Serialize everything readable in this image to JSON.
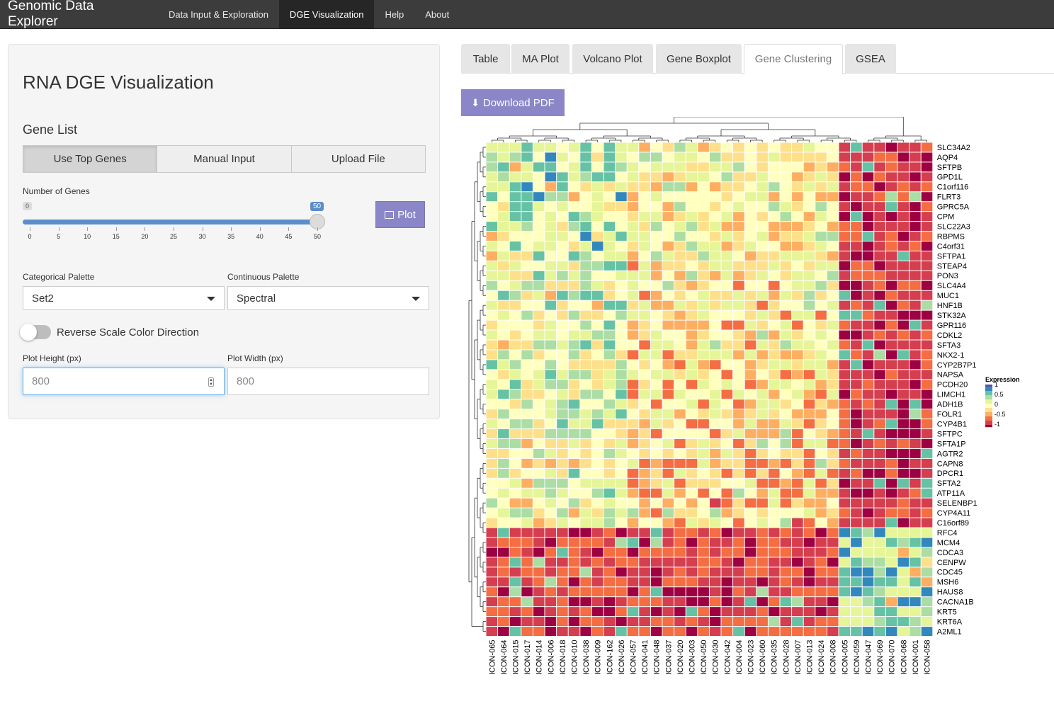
{
  "navbar": {
    "brand": "Genomic Data Explorer",
    "items": [
      "Data Input & Exploration",
      "DGE Visualization",
      "Help",
      "About"
    ],
    "active": "DGE Visualization"
  },
  "sidebar": {
    "title": "RNA DGE Visualization",
    "gene_list_label": "Gene List",
    "gene_list_options": [
      "Use Top Genes",
      "Manual Input",
      "Upload File"
    ],
    "gene_list_selected": "Use Top Genes",
    "num_genes_label": "Number of Genes",
    "slider": {
      "min": 0,
      "max": 50,
      "value": 50,
      "min_label": "0",
      "value_label": "50",
      "ticks": [
        "0",
        "5",
        "10",
        "15",
        "20",
        "25",
        "30",
        "35",
        "40",
        "45",
        "50"
      ]
    },
    "plot_button": "Plot",
    "cat_palette_label": "Categorical Palette",
    "cat_palette_value": "Set2",
    "cont_palette_label": "Continuous Palette",
    "cont_palette_value": "Spectral",
    "reverse_label": "Reverse Scale Color Direction",
    "reverse_on": false,
    "height_label": "Plot Height (px)",
    "height_placeholder": "800",
    "width_label": "Plot Width (px)",
    "width_placeholder": "800"
  },
  "tabs": [
    "Table",
    "MA Plot",
    "Volcano Plot",
    "Gene Boxplot",
    "Gene Clustering",
    "GSEA"
  ],
  "active_tab": "Gene Clustering",
  "download_button": "Download PDF",
  "heatmap": {
    "legend_title": "Expression",
    "legend_ticks": [
      "1",
      "0.5",
      "0",
      "-0.5",
      "-1"
    ],
    "genes": [
      "SLC34A2",
      "AQP4",
      "SFTPB",
      "GPD1L",
      "C1orf116",
      "FLRT3",
      "GPRC5A",
      "CPM",
      "SLC22A3",
      "RBPMS",
      "C4orf31",
      "SFTPA1",
      "STEAP4",
      "PON3",
      "SLC4A4",
      "MUC1",
      "HNF1B",
      "STK32A",
      "GPR116",
      "CDKL2",
      "SFTA3",
      "NKX2-1",
      "CYP2B7P1",
      "NAPSA",
      "PCDH20",
      "LIMCH1",
      "ADH1B",
      "FOLR1",
      "CYP4B1",
      "SFTPC",
      "SFTA1P",
      "AGTR2",
      "CAPN8",
      "DPCR1",
      "SFTA2",
      "ATP11A",
      "SELENBP1",
      "CYP4A11",
      "C16orf89",
      "RFC4",
      "MCM4",
      "CDCA3",
      "CENPW",
      "CDC45",
      "MSH6",
      "HAUS8",
      "CACNA1B",
      "KRT5",
      "KRT6A",
      "A2ML1"
    ],
    "samples": [
      "ICON-065",
      "ICON-064",
      "ICON-015",
      "ICON-017",
      "ICON-014",
      "ICON-006",
      "ICON-018",
      "ICON-010",
      "ICON-038",
      "ICON-009",
      "ICON-162",
      "ICON-026",
      "ICON-057",
      "ICON-041",
      "ICON-048",
      "ICON-037",
      "ICON-020",
      "ICON-003",
      "ICON-050",
      "ICON-030",
      "ICON-042",
      "ICON-004",
      "ICON-023",
      "ICON-060",
      "ICON-035",
      "ICON-028",
      "ICON-007",
      "ICON-013",
      "ICON-024",
      "ICON-008",
      "ICON-005",
      "ICON-059",
      "ICON-047",
      "ICON-069",
      "ICON-070",
      "ICON-068",
      "ICON-001",
      "ICON-058"
    ],
    "colors": [
      "#9e0142",
      "#d53e4f",
      "#f46d43",
      "#fdae61",
      "#fee08b",
      "#ffffbf",
      "#e6f598",
      "#abdda4",
      "#66c2a5",
      "#3288bd",
      "#5e4fa2"
    ]
  }
}
